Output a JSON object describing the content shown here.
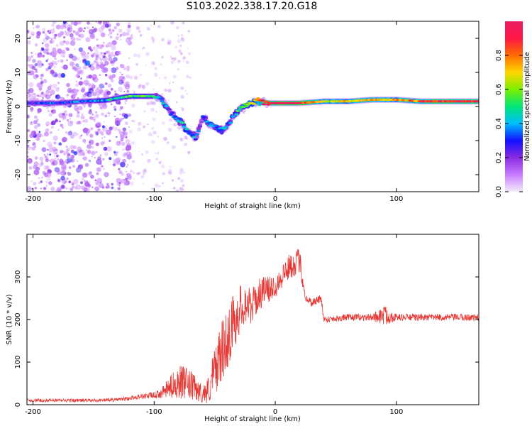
{
  "title": "S103.2022.338.17.20.G18",
  "colors": {
    "snr_line": "#e53935",
    "colorbar": [
      "#f3ecf8",
      "#c77dff",
      "#8a2be2",
      "#1010ff",
      "#00bfff",
      "#00e676",
      "#7bf000",
      "#ffd600",
      "#ff6d00",
      "#ff1744",
      "#e91e63"
    ]
  },
  "chart_data": [
    {
      "type": "heatmap",
      "title": "",
      "xlabel": "Height of straight line (km)",
      "ylabel": "Frequency (Hz)",
      "xlim": [
        -205,
        168
      ],
      "ylim": [
        -25,
        25
      ],
      "xticks": [
        -200,
        -100,
        0,
        100
      ],
      "yticks": [
        -20,
        -10,
        0,
        10,
        20
      ],
      "xtick_labels": [
        "-200",
        "-100",
        "0",
        "100"
      ],
      "ytick_labels": [
        "-20",
        "-10",
        "0",
        "10",
        "20"
      ],
      "colorbar": {
        "label": "Normalized spectral amplitude",
        "ticks": [
          0.0,
          0.2,
          0.4,
          0.6,
          0.8
        ],
        "tick_labels": [
          "0.0",
          "0.2",
          "0.4",
          "0.6",
          "0.8"
        ],
        "range": [
          0,
          1
        ]
      },
      "ridge": {
        "x": [
          -205,
          -180,
          -160,
          -140,
          -130,
          -120,
          -110,
          -100,
          -95,
          -90,
          -85,
          -80,
          -75,
          -70,
          -65,
          -60,
          -55,
          -50,
          -45,
          -40,
          -35,
          -30,
          -25,
          -20,
          -15,
          -10,
          -5,
          0,
          20,
          40,
          60,
          80,
          100,
          120,
          140,
          168
        ],
        "freq": [
          1,
          1,
          1.5,
          1.8,
          2.5,
          3,
          3,
          3,
          2.5,
          0,
          -2,
          -4,
          -6,
          -8,
          -9,
          -3,
          -5,
          -6,
          -7,
          -6,
          -3,
          -1,
          0,
          1,
          1.5,
          1.5,
          1,
          1,
          1,
          1.5,
          1.5,
          2,
          2,
          1.5,
          1.5,
          1.5
        ],
        "amp": [
          0.3,
          0.3,
          0.35,
          0.4,
          0.45,
          0.5,
          0.5,
          0.5,
          0.4,
          0.35,
          0.35,
          0.4,
          0.4,
          0.35,
          0.3,
          0.35,
          0.4,
          0.35,
          0.4,
          0.35,
          0.4,
          0.45,
          0.55,
          0.6,
          0.7,
          0.85,
          0.9,
          0.95,
          0.95,
          0.65,
          0.7,
          0.75,
          0.7,
          0.8,
          0.9,
          0.9
        ]
      }
    },
    {
      "type": "line",
      "title": "",
      "xlabel": "Height of straight line (km)",
      "ylabel": "SNR (10 * v/v)",
      "xlim": [
        -205,
        168
      ],
      "ylim": [
        0,
        400
      ],
      "xticks": [
        -200,
        -100,
        0,
        100
      ],
      "yticks": [
        0,
        100,
        200,
        300
      ],
      "xtick_labels": [
        "-200",
        "-100",
        "0",
        "100"
      ],
      "ytick_labels": [
        "0",
        "100",
        "200",
        "300"
      ],
      "series": [
        {
          "name": "SNR",
          "x": [
            -205,
            -180,
            -150,
            -130,
            -120,
            -110,
            -100,
            -95,
            -90,
            -85,
            -80,
            -75,
            -70,
            -65,
            -60,
            -55,
            -50,
            -45,
            -40,
            -35,
            -30,
            -25,
            -20,
            -15,
            -10,
            -5,
            0,
            5,
            10,
            15,
            20,
            25,
            30,
            35,
            38,
            40,
            60,
            80,
            90,
            100,
            110,
            120,
            140,
            168
          ],
          "values": [
            10,
            10,
            10,
            12,
            15,
            20,
            22,
            25,
            35,
            45,
            55,
            50,
            45,
            35,
            25,
            35,
            80,
            120,
            150,
            190,
            220,
            240,
            230,
            250,
            270,
            270,
            280,
            300,
            320,
            330,
            340,
            250,
            240,
            245,
            250,
            200,
            205,
            205,
            210,
            205,
            205,
            205,
            205,
            205
          ],
          "amplitude": [
            4,
            4,
            4,
            4,
            5,
            6,
            8,
            10,
            20,
            30,
            40,
            40,
            35,
            30,
            20,
            35,
            60,
            70,
            70,
            70,
            60,
            50,
            40,
            40,
            35,
            30,
            30,
            30,
            30,
            30,
            30,
            10,
            10,
            10,
            10,
            8,
            8,
            8,
            25,
            8,
            8,
            8,
            8,
            8
          ]
        }
      ]
    }
  ]
}
